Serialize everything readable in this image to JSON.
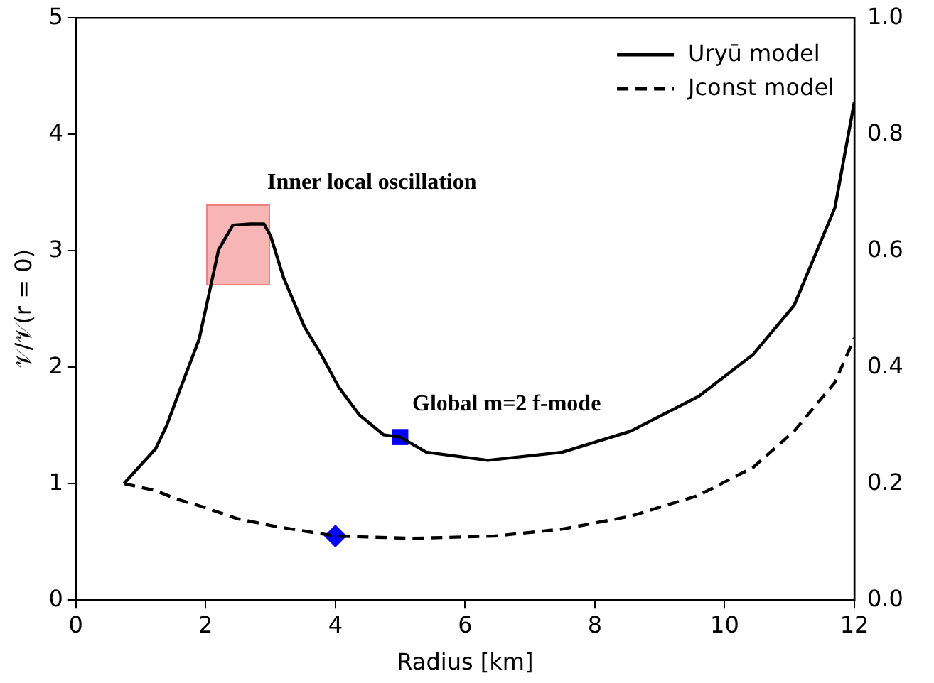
{
  "chart_data": {
    "type": "line",
    "xlabel": "Radius [km]",
    "ylabel": "𝒱/𝒱(r = 0)",
    "xlim": [
      0,
      12
    ],
    "xticks": [
      0,
      2,
      4,
      6,
      8,
      10,
      12
    ],
    "ylim": [
      0,
      5
    ],
    "yticks": [
      0,
      1,
      2,
      3,
      4,
      5
    ],
    "y2lim": [
      0,
      1
    ],
    "y2ticks": [
      {
        "value": 0,
        "label": "0.0"
      },
      0.2,
      0.4,
      0.6,
      0.8,
      {
        "value": 1,
        "label": "1.0"
      }
    ],
    "grid": false,
    "legend": "top right",
    "annotations": [
      "Inner local oscillation",
      "Global m=2 f-mode"
    ],
    "series": [
      {
        "name": "Uryū model",
        "color": "#000000",
        "line_style": "solid",
        "marker": "none",
        "x": [
          0.74,
          1.23,
          1.4,
          1.64,
          1.9,
          2.06,
          2.2,
          2.42,
          2.69,
          2.9,
          3.0,
          3.2,
          3.52,
          3.78,
          4.05,
          4.37,
          4.74,
          5.0,
          5.4,
          6.35,
          7.5,
          8.55,
          9.6,
          10.44,
          11.07,
          11.7,
          12
        ],
        "values": [
          1.0,
          1.3,
          1.5,
          1.86,
          2.24,
          2.65,
          3.01,
          3.22,
          3.23,
          3.23,
          3.13,
          2.77,
          2.35,
          2.11,
          1.83,
          1.59,
          1.42,
          1.4,
          1.27,
          1.2,
          1.27,
          1.45,
          1.75,
          2.11,
          2.53,
          3.37,
          4.28
        ]
      },
      {
        "name": "Jconst model",
        "color": "#000000",
        "line_style": "dashed",
        "marker": "none",
        "x": [
          0.74,
          1.23,
          1.54,
          1.96,
          2.48,
          3.1,
          4.0,
          5.2,
          6.46,
          7.5,
          8.55,
          9.6,
          10.44,
          11.07,
          11.7,
          12
        ],
        "values": [
          1.0,
          0.94,
          0.87,
          0.8,
          0.7,
          0.63,
          0.55,
          0.53,
          0.55,
          0.61,
          0.72,
          0.9,
          1.14,
          1.45,
          1.87,
          2.25
        ]
      },
      {
        "type": "scatter",
        "color": "#0000ff",
        "marker": "square",
        "x": [
          5
        ],
        "values": [
          1.4
        ]
      },
      {
        "type": "scatter",
        "color": "#0000ff",
        "marker": "diamond",
        "x": [
          4
        ],
        "values": [
          0.55
        ]
      }
    ]
  }
}
